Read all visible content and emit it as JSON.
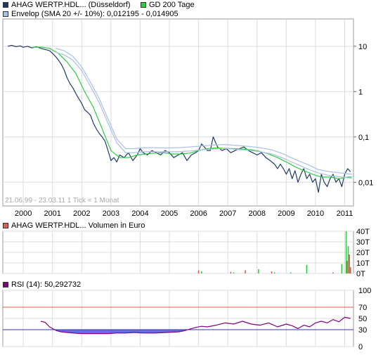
{
  "legends": {
    "price": {
      "label": "AHAG WERTP.HDL... (Düsseldorf)",
      "color": "#1f3a68"
    },
    "ma200": {
      "label": "GD 200 Tage",
      "color": "#2ecc40"
    },
    "envelope": {
      "label": "Envelop (SMA 20 +/- 10%): 0,012195 - 0,014905",
      "color": "#a9bfe6"
    },
    "volume": {
      "label": "AHAG WERTP.HDL... Volumen in Euro",
      "color": "#e05a4e"
    },
    "rsi": {
      "label": "RSI (14): 50,292732",
      "color": "#800080"
    }
  },
  "chart_data": [
    {
      "type": "line",
      "name": "price",
      "scale": "log",
      "ylim": [
        0.003,
        40
      ],
      "xlim": [
        1999.3,
        2011.3
      ],
      "y_tick_labels": [
        "10",
        "1",
        "0,1",
        "0,01"
      ],
      "y_tick_values": [
        10,
        1,
        0.1,
        0.01
      ],
      "x_tick_labels": [
        "2000",
        "2001",
        "2002",
        "2003",
        "2004",
        "2005",
        "2006",
        "2007",
        "2008",
        "2009",
        "2010",
        "2011"
      ],
      "x_tick_values": [
        2000,
        2001,
        2002,
        2003,
        2004,
        2005,
        2006,
        2007,
        2008,
        2009,
        2010,
        2011
      ],
      "note": "21.06.99 - 23.03.11   1 Tick = 1 Monat",
      "series": [
        {
          "key": "price",
          "color": "#1f3a68",
          "x": [
            1999.47,
            1999.6,
            1999.75,
            1999.9,
            2000.0,
            2000.15,
            2000.3,
            2000.45,
            2000.6,
            2000.75,
            2000.9,
            2001.0,
            2001.1,
            2001.2,
            2001.3,
            2001.4,
            2001.5,
            2001.6,
            2001.7,
            2001.8,
            2001.9,
            2002.0,
            2002.1,
            2002.2,
            2002.3,
            2002.4,
            2002.5,
            2002.6,
            2002.7,
            2002.8,
            2002.9,
            2003.0,
            2003.1,
            2003.2,
            2003.3,
            2003.45,
            2003.6,
            2003.75,
            2003.9,
            2004.0,
            2004.1,
            2004.25,
            2004.4,
            2004.55,
            2004.7,
            2004.85,
            2005.0,
            2005.15,
            2005.3,
            2005.45,
            2005.6,
            2005.75,
            2005.9,
            2006.0,
            2006.1,
            2006.2,
            2006.3,
            2006.4,
            2006.5,
            2006.65,
            2006.8,
            2006.95,
            2007.1,
            2007.25,
            2007.4,
            2007.55,
            2007.7,
            2007.85,
            2008.0,
            2008.15,
            2008.3,
            2008.45,
            2008.6,
            2008.7,
            2008.8,
            2008.9,
            2009.0,
            2009.1,
            2009.2,
            2009.3,
            2009.4,
            2009.5,
            2009.6,
            2009.7,
            2009.8,
            2009.9,
            2010.0,
            2010.1,
            2010.2,
            2010.3,
            2010.4,
            2010.5,
            2010.6,
            2010.7,
            2010.8,
            2010.9,
            2011.0,
            2011.1,
            2011.2
          ],
          "y": [
            10,
            10.5,
            9.8,
            10.2,
            9.5,
            10,
            9.2,
            9.8,
            9,
            8.5,
            8,
            7,
            6,
            5,
            4,
            3,
            2,
            1.5,
            1.2,
            0.9,
            0.7,
            0.55,
            0.4,
            0.35,
            0.3,
            0.2,
            0.15,
            0.12,
            0.1,
            0.08,
            0.05,
            0.03,
            0.035,
            0.028,
            0.04,
            0.035,
            0.045,
            0.03,
            0.04,
            0.055,
            0.045,
            0.04,
            0.05,
            0.045,
            0.04,
            0.05,
            0.045,
            0.035,
            0.04,
            0.045,
            0.03,
            0.04,
            0.045,
            0.05,
            0.07,
            0.06,
            0.05,
            0.05,
            0.1,
            0.06,
            0.05,
            0.055,
            0.045,
            0.05,
            0.055,
            0.06,
            0.05,
            0.045,
            0.04,
            0.045,
            0.035,
            0.03,
            0.025,
            0.02,
            0.025,
            0.02,
            0.015,
            0.02,
            0.012,
            0.018,
            0.01,
            0.015,
            0.02,
            0.012,
            0.015,
            0.01,
            0.012,
            0.006,
            0.015,
            0.01,
            0.008,
            0.012,
            0.015,
            0.01,
            0.012,
            0.008,
            0.015,
            0.02,
            0.017
          ]
        },
        {
          "key": "ma200",
          "color": "#2ecc40",
          "x": [
            2000.3,
            2000.6,
            2000.9,
            2001.2,
            2001.5,
            2001.8,
            2002.1,
            2002.4,
            2002.7,
            2003.0,
            2003.3,
            2003.6,
            2003.9,
            2004.2,
            2004.5,
            2004.8,
            2005.1,
            2005.4,
            2005.7,
            2006.0,
            2006.3,
            2006.6,
            2006.9,
            2007.2,
            2007.5,
            2007.8,
            2008.1,
            2008.4,
            2008.7,
            2009.0,
            2009.3,
            2009.6,
            2009.9,
            2010.2,
            2010.5,
            2010.8,
            2011.1,
            2011.25
          ],
          "y": [
            9.5,
            9.6,
            9.0,
            7.0,
            4.5,
            2.5,
            1.0,
            0.45,
            0.15,
            0.05,
            0.035,
            0.035,
            0.04,
            0.042,
            0.044,
            0.045,
            0.042,
            0.042,
            0.044,
            0.05,
            0.055,
            0.057,
            0.056,
            0.055,
            0.054,
            0.052,
            0.048,
            0.042,
            0.035,
            0.028,
            0.022,
            0.018,
            0.015,
            0.013,
            0.013,
            0.012,
            0.013,
            0.013
          ]
        },
        {
          "key": "env_upper",
          "color": "#a9bfe6",
          "x": [
            2001.1,
            2001.4,
            2001.7,
            2002.0,
            2002.3,
            2002.6,
            2002.9,
            2003.2,
            2003.5,
            2003.8,
            2004.1,
            2004.5,
            2004.9,
            2005.3,
            2005.7,
            2006.1,
            2006.5,
            2006.9,
            2007.3,
            2007.7,
            2008.1,
            2008.5,
            2008.9,
            2009.3,
            2009.7,
            2010.1,
            2010.5,
            2010.9,
            2011.25
          ],
          "y": [
            9.0,
            8.0,
            6.0,
            3.5,
            1.6,
            0.7,
            0.25,
            0.09,
            0.055,
            0.055,
            0.058,
            0.058,
            0.057,
            0.058,
            0.06,
            0.063,
            0.066,
            0.068,
            0.065,
            0.062,
            0.058,
            0.052,
            0.042,
            0.032,
            0.025,
            0.019,
            0.017,
            0.016,
            0.0149
          ]
        },
        {
          "key": "env_lower",
          "color": "#a9bfe6",
          "x": [
            2001.1,
            2001.4,
            2001.7,
            2002.0,
            2002.3,
            2002.6,
            2002.9,
            2003.2,
            2003.5,
            2003.8,
            2004.1,
            2004.5,
            2004.9,
            2005.3,
            2005.7,
            2006.1,
            2006.5,
            2006.9,
            2007.3,
            2007.7,
            2008.1,
            2008.5,
            2008.9,
            2009.3,
            2009.7,
            2010.1,
            2010.5,
            2010.9,
            2011.25
          ],
          "y": [
            7.4,
            6.5,
            4.9,
            2.9,
            1.3,
            0.57,
            0.2,
            0.074,
            0.045,
            0.045,
            0.047,
            0.047,
            0.047,
            0.047,
            0.049,
            0.052,
            0.054,
            0.056,
            0.053,
            0.051,
            0.047,
            0.042,
            0.034,
            0.026,
            0.02,
            0.016,
            0.014,
            0.013,
            0.0122
          ]
        }
      ]
    },
    {
      "type": "bar",
      "name": "volume",
      "ylim": [
        0,
        40
      ],
      "y_tick_labels": [
        "40T",
        "30T",
        "20T",
        "10T",
        "0T"
      ],
      "y_tick_values": [
        40,
        30,
        20,
        10,
        0
      ],
      "x": [
        2006.0,
        2006.1,
        2007.1,
        2007.2,
        2007.6,
        2008.05,
        2008.5,
        2008.6,
        2009.15,
        2009.7,
        2010.6,
        2010.9,
        2011.05,
        2011.08,
        2011.12,
        2011.16,
        2011.2
      ],
      "values": [
        3,
        2,
        1.5,
        1,
        3,
        4,
        2,
        1,
        1,
        8,
        1,
        9,
        40,
        12,
        26,
        18,
        6
      ],
      "colors": [
        "#e05a4e",
        "#2ecc40",
        "#e05a4e",
        "#2ecc40",
        "#e05a4e",
        "#2ecc40",
        "#e05a4e",
        "#2ecc40",
        "#2ecc40",
        "#2ecc40",
        "#e05a4e",
        "#2ecc40",
        "#2ecc40",
        "#e05a4e",
        "#2ecc40",
        "#e05a4e",
        "#e05a4e"
      ]
    },
    {
      "type": "area",
      "name": "rsi",
      "ylim": [
        0,
        100
      ],
      "y_tick_labels": [
        "100",
        "70",
        "50",
        "30",
        "0"
      ],
      "y_tick_values": [
        100,
        70,
        50,
        30,
        0
      ],
      "reference_lines": [
        {
          "value": 70,
          "color": "#e05a4e"
        },
        {
          "value": 30,
          "color": "#3333aa"
        }
      ],
      "x": [
        2000.6,
        2000.75,
        2000.9,
        2001.0,
        2001.15,
        2001.3,
        2001.5,
        2001.7,
        2002.0,
        2002.3,
        2002.6,
        2002.9,
        2003.2,
        2003.5,
        2003.8,
        2004.1,
        2004.5,
        2004.9,
        2005.3,
        2005.5,
        2005.7,
        2005.9,
        2006.1,
        2006.3,
        2006.6,
        2006.9,
        2007.2,
        2007.5,
        2007.8,
        2008.1,
        2008.4,
        2008.7,
        2009.0,
        2009.2,
        2009.4,
        2009.6,
        2009.8,
        2010.0,
        2010.2,
        2010.4,
        2010.6,
        2010.8,
        2011.0,
        2011.2
      ],
      "values": [
        45,
        43,
        35,
        32,
        28,
        26,
        25,
        24,
        23,
        23,
        23,
        23,
        24,
        24,
        25,
        24,
        24,
        25,
        26,
        28,
        31,
        34,
        36,
        35,
        38,
        42,
        40,
        45,
        40,
        38,
        42,
        35,
        40,
        37,
        32,
        38,
        35,
        42,
        45,
        42,
        48,
        44,
        52,
        50
      ]
    }
  ]
}
